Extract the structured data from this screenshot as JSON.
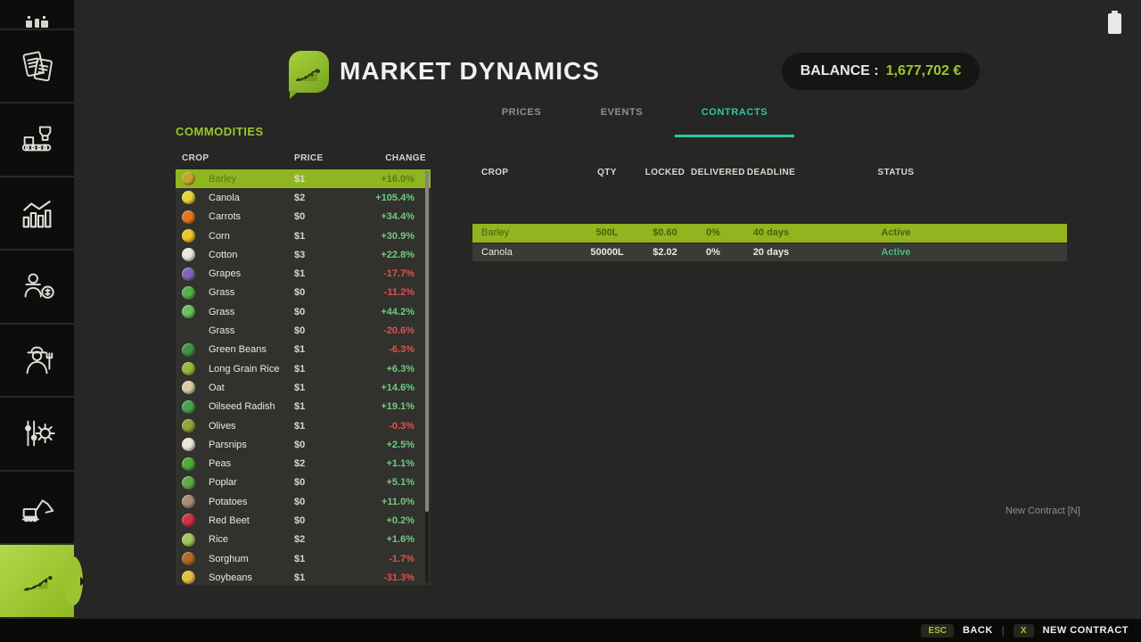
{
  "header": {
    "title": "MARKET DYNAMICS",
    "balance_label": "BALANCE :",
    "balance_value": "1,677,702 €",
    "logo_icon": "market-chart-leaf-icon"
  },
  "window": {
    "status_icon": "battery-icon"
  },
  "sidebar": {
    "items": [
      {
        "id": "top-partial",
        "icon": "partial-icon",
        "active": false
      },
      {
        "id": "documents",
        "icon": "documents-icon",
        "active": false
      },
      {
        "id": "production",
        "icon": "production-icon",
        "active": false
      },
      {
        "id": "statistics",
        "icon": "statistics-icon",
        "active": false
      },
      {
        "id": "sales",
        "icon": "sales-icon",
        "active": false
      },
      {
        "id": "farmer",
        "icon": "farmer-icon",
        "active": false
      },
      {
        "id": "settings",
        "icon": "settings-icon",
        "active": false
      },
      {
        "id": "construction",
        "icon": "excavator-icon",
        "active": false
      },
      {
        "id": "market-dynamics",
        "icon": "market-chart-icon",
        "active": true
      }
    ]
  },
  "tabs": [
    {
      "label": "PRICES",
      "active": false
    },
    {
      "label": "EVENTS",
      "active": false
    },
    {
      "label": "CONTRACTS",
      "active": true
    }
  ],
  "commodities": {
    "section_title": "COMMODITIES",
    "columns": [
      "CROP",
      "PRICE",
      "CHANGE"
    ],
    "rows": [
      {
        "crop": "Barley",
        "price": "$1",
        "change": "+16.0%",
        "direction": "up",
        "selected": true,
        "icon_color": "#c9a22b"
      },
      {
        "crop": "Canola",
        "price": "$2",
        "change": "+105.4%",
        "direction": "up",
        "selected": false,
        "icon_color": "#e7d23e"
      },
      {
        "crop": "Carrots",
        "price": "$0",
        "change": "+34.4%",
        "direction": "up",
        "selected": false,
        "icon_color": "#e0761f"
      },
      {
        "crop": "Corn",
        "price": "$1",
        "change": "+30.9%",
        "direction": "up",
        "selected": false,
        "icon_color": "#e8c829"
      },
      {
        "crop": "Cotton",
        "price": "$3",
        "change": "+22.8%",
        "direction": "up",
        "selected": false,
        "icon_color": "#e9e9e2"
      },
      {
        "crop": "Grapes",
        "price": "$1",
        "change": "-17.7%",
        "direction": "down",
        "selected": false,
        "icon_color": "#8465b5"
      },
      {
        "crop": "Grass",
        "price": "$0",
        "change": "-11.2%",
        "direction": "down",
        "selected": false,
        "icon_color": "#57b04a"
      },
      {
        "crop": "Grass",
        "price": "$0",
        "change": "+44.2%",
        "direction": "up",
        "selected": false,
        "icon_color": "#6cc05f"
      },
      {
        "crop": "Grass",
        "price": "$0",
        "change": "-20.6%",
        "direction": "down",
        "selected": false,
        "icon_color": null
      },
      {
        "crop": "Green Beans",
        "price": "$1",
        "change": "-6.3%",
        "direction": "down",
        "selected": false,
        "icon_color": "#3f9444"
      },
      {
        "crop": "Long Grain Rice",
        "price": "$1",
        "change": "+6.3%",
        "direction": "up",
        "selected": false,
        "icon_color": "#9ab83a"
      },
      {
        "crop": "Oat",
        "price": "$1",
        "change": "+14.6%",
        "direction": "up",
        "selected": false,
        "icon_color": "#d8cba2"
      },
      {
        "crop": "Oilseed Radish",
        "price": "$1",
        "change": "+19.1%",
        "direction": "up",
        "selected": false,
        "icon_color": "#49a24e"
      },
      {
        "crop": "Olives",
        "price": "$1",
        "change": "-0.3%",
        "direction": "down",
        "selected": false,
        "icon_color": "#97a23b"
      },
      {
        "crop": "Parsnips",
        "price": "$0",
        "change": "+2.5%",
        "direction": "up",
        "selected": false,
        "icon_color": "#eee6d6"
      },
      {
        "crop": "Peas",
        "price": "$2",
        "change": "+1.1%",
        "direction": "up",
        "selected": false,
        "icon_color": "#55a83a"
      },
      {
        "crop": "Poplar",
        "price": "$0",
        "change": "+5.1%",
        "direction": "up",
        "selected": false,
        "icon_color": "#62a94b"
      },
      {
        "crop": "Potatoes",
        "price": "$0",
        "change": "+11.0%",
        "direction": "up",
        "selected": false,
        "icon_color": "#a78b77"
      },
      {
        "crop": "Red Beet",
        "price": "$0",
        "change": "+0.2%",
        "direction": "up",
        "selected": false,
        "icon_color": "#cc3345"
      },
      {
        "crop": "Rice",
        "price": "$2",
        "change": "+1.6%",
        "direction": "up",
        "selected": false,
        "icon_color": "#a3c75a"
      },
      {
        "crop": "Sorghum",
        "price": "$1",
        "change": "-1.7%",
        "direction": "down",
        "selected": false,
        "icon_color": "#b06a2a"
      },
      {
        "crop": "Soybeans",
        "price": "$1",
        "change": "-31.3%",
        "direction": "down",
        "selected": false,
        "icon_color": "#e2c23c"
      }
    ]
  },
  "contracts": {
    "columns": [
      "CROP",
      "QTY",
      "LOCKED",
      "DELIVERED",
      "DEADLINE",
      "STATUS"
    ],
    "rows": [
      {
        "crop": "Barley",
        "qty": "500L",
        "locked": "$0.60",
        "delivered": "0%",
        "deadline": "40 days",
        "status": "Active",
        "selected": true
      },
      {
        "crop": "Canola",
        "qty": "50000L",
        "locked": "$2.02",
        "delivered": "0%",
        "deadline": "20 days",
        "status": "Active",
        "selected": false
      }
    ],
    "new_contract_hint": "New Contract [N]"
  },
  "footer": {
    "back_key": "ESC",
    "back_label": "BACK",
    "separator": "|",
    "new_contract_key": "X",
    "new_contract_label": "NEW CONTRACT"
  },
  "colors": {
    "accent_green": "#9dc72e",
    "tab_active_teal": "#2dc7a4",
    "selected_row_green": "#92b41e",
    "change_up": "#71cb82",
    "change_down": "#e0524e",
    "status_active": "#4fb87e",
    "balance_value": "#9dc72e"
  }
}
